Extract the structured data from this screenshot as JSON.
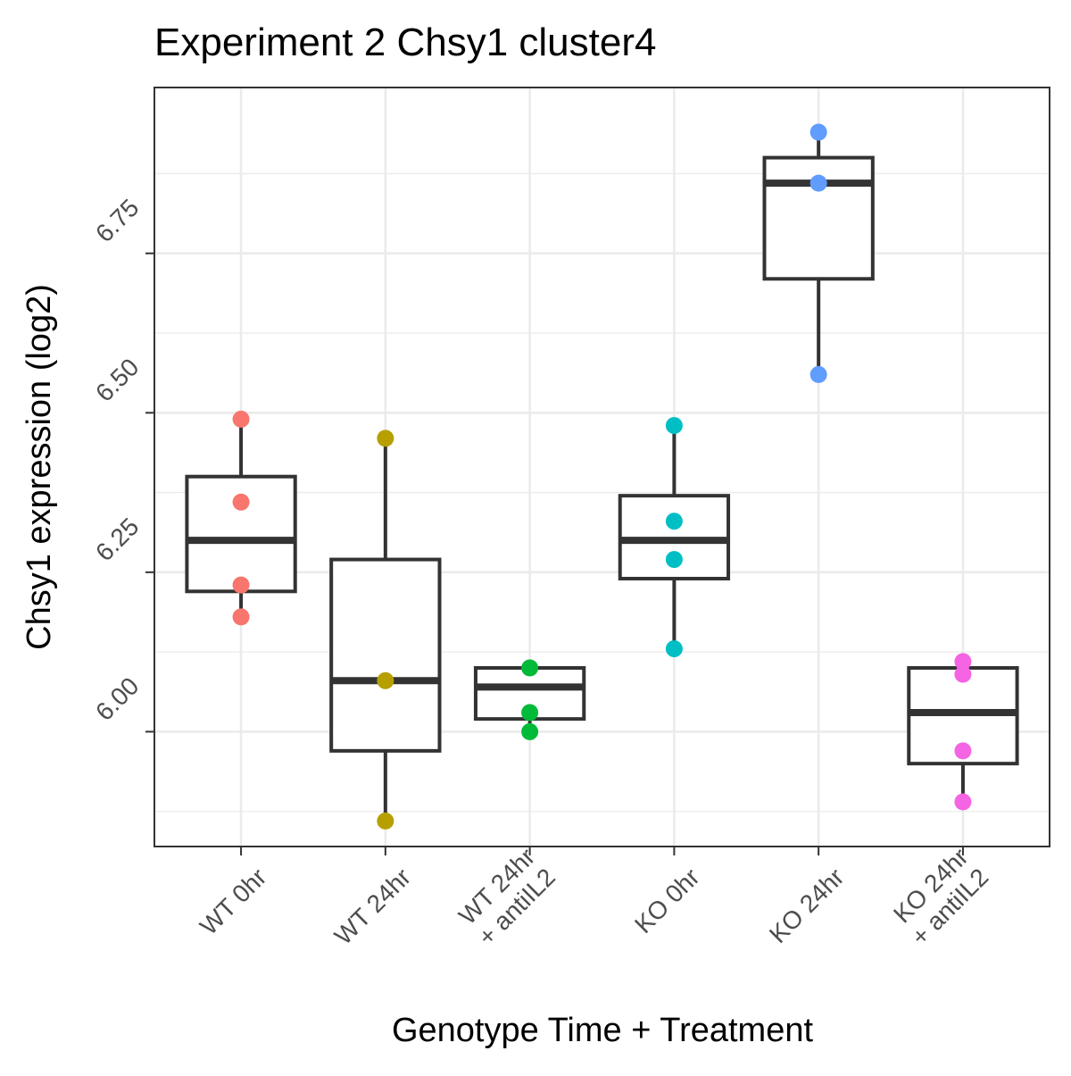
{
  "chart_data": {
    "type": "boxplot",
    "title": "Experiment 2 Chsy1 cluster4",
    "xlabel": "Genotype Time + Treatment",
    "ylabel": "Chsy1 expression (log2)",
    "ylim": [
      5.82,
      7.01
    ],
    "y_ticks": [
      6.0,
      6.25,
      6.5,
      6.75
    ],
    "y_tick_labels": [
      "6.00",
      "6.25",
      "6.50",
      "6.75"
    ],
    "grid": true,
    "legend": "none",
    "categories": [
      {
        "lines": [
          "WT 0hr"
        ]
      },
      {
        "lines": [
          "WT 24hr"
        ]
      },
      {
        "lines": [
          "WT 24hr",
          "+ antiIL2"
        ]
      },
      {
        "lines": [
          "KO 0hr"
        ]
      },
      {
        "lines": [
          "KO 24hr"
        ]
      },
      {
        "lines": [
          "KO 24hr",
          "+ antiIL2"
        ]
      }
    ],
    "groups": [
      {
        "color": "#F8766D",
        "whisker_low": 6.18,
        "q1": 6.22,
        "median": 6.3,
        "q3": 6.4,
        "whisker_high": 6.49,
        "points": [
          6.49,
          6.36,
          6.23,
          6.18
        ]
      },
      {
        "color": "#B79F00",
        "whisker_low": 5.86,
        "q1": 5.97,
        "median": 6.08,
        "q3": 6.27,
        "whisker_high": 6.46,
        "points": [
          6.46,
          6.08,
          5.86
        ]
      },
      {
        "color": "#00BA38",
        "whisker_low": 6.0,
        "q1": 6.02,
        "median": 6.07,
        "q3": 6.1,
        "whisker_high": 6.1,
        "points": [
          6.1,
          6.03,
          6.0
        ]
      },
      {
        "color": "#00BFC4",
        "whisker_low": 6.13,
        "q1": 6.24,
        "median": 6.3,
        "q3": 6.37,
        "whisker_high": 6.48,
        "points": [
          6.48,
          6.33,
          6.27,
          6.13
        ]
      },
      {
        "color": "#619CFF",
        "whisker_low": 6.56,
        "q1": 6.71,
        "median": 6.86,
        "q3": 6.9,
        "whisker_high": 6.94,
        "points": [
          6.94,
          6.86,
          6.56
        ]
      },
      {
        "color": "#F564E3",
        "whisker_low": 5.89,
        "q1": 5.95,
        "median": 6.03,
        "q3": 6.1,
        "whisker_high": 6.11,
        "points": [
          6.11,
          6.09,
          5.97,
          5.89
        ]
      }
    ]
  }
}
